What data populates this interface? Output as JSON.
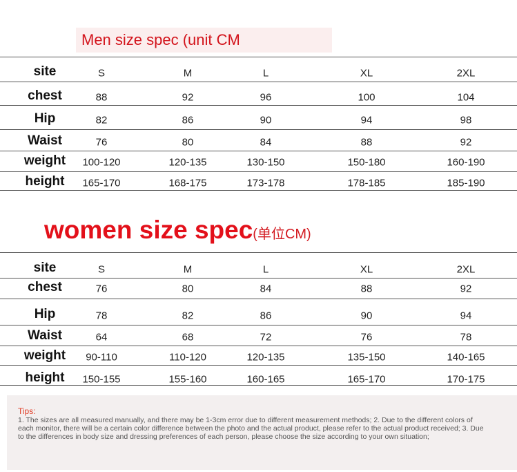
{
  "men": {
    "title": "Men size spec (unit CM",
    "rows": [
      [
        "site",
        "S",
        "M",
        "L",
        "XL",
        "2XL"
      ],
      [
        "chest",
        "88",
        "92",
        "96",
        "100",
        "104"
      ],
      [
        "Hip",
        "82",
        "86",
        "90",
        "94",
        "98"
      ],
      [
        "Waist",
        "76",
        "80",
        "84",
        "88",
        "92"
      ],
      [
        "weight",
        "100-120",
        "120-135",
        "130-150",
        "150-180",
        "160-190"
      ],
      [
        "height",
        "165-170",
        "168-175",
        "173-178",
        "178-185",
        "185-190"
      ]
    ]
  },
  "women": {
    "title": "women size spec",
    "subtitle": "(单位CM)",
    "rows": [
      [
        "site",
        "S",
        "M",
        "L",
        "XL",
        "2XL"
      ],
      [
        "chest",
        "76",
        "80",
        "84",
        "88",
        "92"
      ],
      [
        "Hip",
        "78",
        "82",
        "86",
        "90",
        "94"
      ],
      [
        "Waist",
        "64",
        "68",
        "72",
        "76",
        "78"
      ],
      [
        "weight",
        "90-110",
        "110-120",
        "120-135",
        "135-150",
        "140-165"
      ],
      [
        "height",
        "150-155",
        "155-160",
        "160-165",
        "165-170",
        "170-175"
      ]
    ]
  },
  "tips": {
    "label": "Tips:",
    "text": "1. The sizes are all measured manually, and there may be 1-3cm error due to different measurement methods; 2. Due to the different colors of each monitor, there will be a certain color difference between the photo and the actual product, please refer to the actual product received; 3. Due to the differences in body size and dressing preferences of each person, please choose the size according to your own situation;"
  }
}
